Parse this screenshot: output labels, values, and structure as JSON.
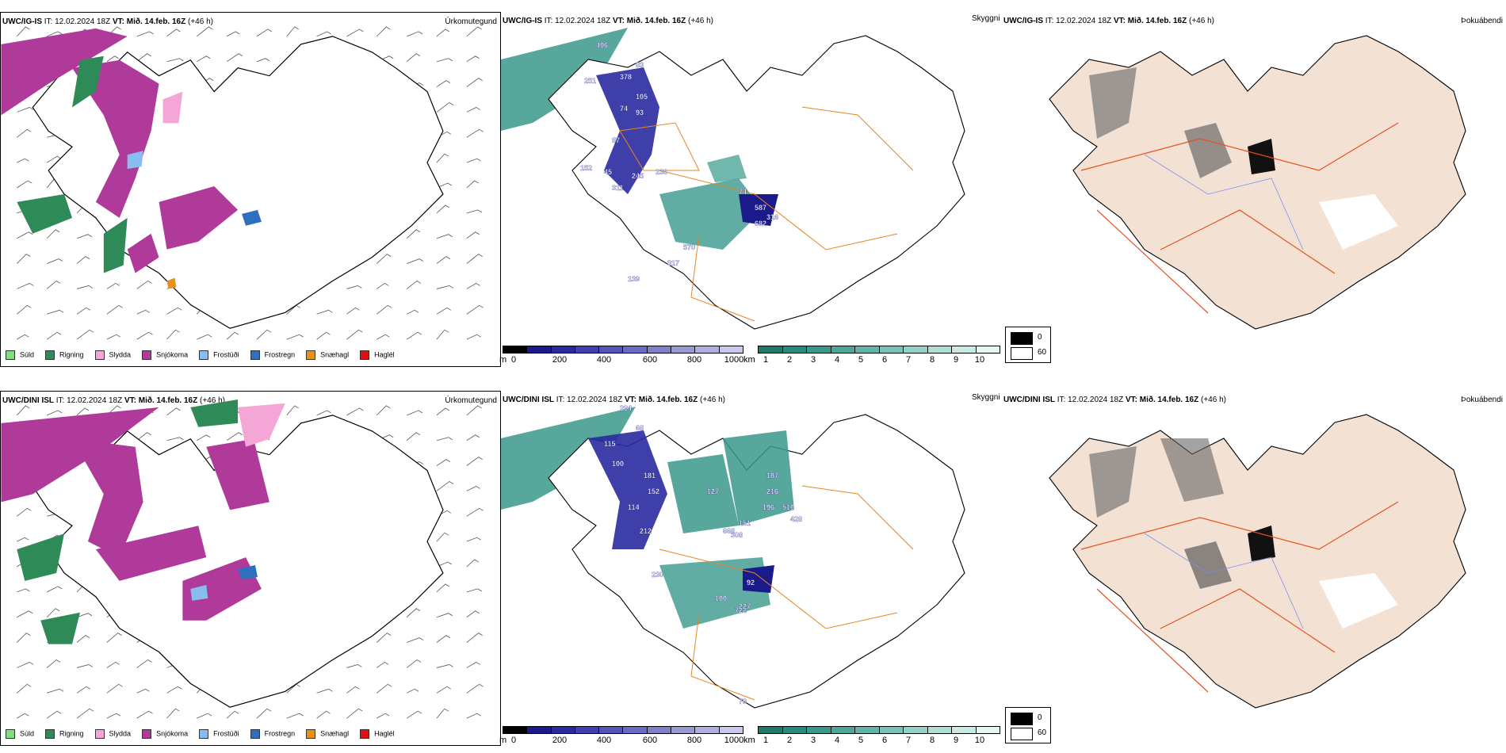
{
  "rows": [
    {
      "model": "UWC/IG-IS",
      "it_label": "IT:",
      "it_value": "12.02.2024 18Z",
      "vt_label": "VT:",
      "vt_value": "Mið. 14.feb. 16Z",
      "lead": "(+46 h)"
    },
    {
      "model": "UWC/DINI ISL",
      "it_label": "IT:",
      "it_value": "12.02.2024 18Z",
      "vt_label": "VT:",
      "vt_value": "Mið. 14.feb. 16Z",
      "lead": "(+46 h)"
    }
  ],
  "panel_titles": {
    "precip_type": "Úrkomutegund",
    "visibility": "Skyggni",
    "fog": "Þokuábendi"
  },
  "precip_legend": [
    {
      "label": "Súld",
      "color": "#7fe07f"
    },
    {
      "label": "Rigning",
      "color": "#2e8b57"
    },
    {
      "label": "Slydda",
      "color": "#f4a6d7"
    },
    {
      "label": "Snjókoma",
      "color": "#b03a9a"
    },
    {
      "label": "Frostúði",
      "color": "#87bdf0"
    },
    {
      "label": "Frostregn",
      "color": "#2f6fbf"
    },
    {
      "label": "Snæhagl",
      "color": "#e8921e"
    },
    {
      "label": "Haglél",
      "color": "#e01010"
    }
  ],
  "ceiling_scale": {
    "unit": "m",
    "ticks": [
      "0",
      "200",
      "400",
      "600",
      "800",
      "1000"
    ],
    "colors": [
      "#000000",
      "#1a1a8a",
      "#2a2aa0",
      "#4040b0",
      "#5555b8",
      "#6b6bc2",
      "#8080c8",
      "#9898d2",
      "#b0b0de",
      "#c8c8e8"
    ]
  },
  "vis_scale": {
    "unit": "km",
    "ticks": [
      "1",
      "2",
      "3",
      "4",
      "5",
      "6",
      "7",
      "8",
      "9",
      "10"
    ],
    "colors": [
      "#1f7a6e",
      "#2b8a7e",
      "#3a988c",
      "#4ca69a",
      "#62b4a8",
      "#7ac2b8",
      "#94d0c6",
      "#b0ddd6",
      "#cce9e4",
      "#e6f4f2"
    ]
  },
  "fog_legend": [
    {
      "label": "0",
      "color": "#000000"
    },
    {
      "label": "60",
      "color": "#ffffff"
    }
  ],
  "ceiling_labels_row1": [
    "406",
    "83",
    "378",
    "105",
    "251",
    "74",
    "93",
    "87",
    "45",
    "245",
    "311",
    "236",
    "74",
    "587",
    "316",
    "682",
    "570",
    "317",
    "139",
    "152"
  ],
  "ceiling_labels_row2": [
    "294",
    "68",
    "115",
    "100",
    "127",
    "181",
    "152",
    "114",
    "212",
    "230",
    "187",
    "216",
    "510",
    "428",
    "196",
    "151",
    "308",
    "668",
    "92",
    "100",
    "722",
    "227",
    "79"
  ]
}
